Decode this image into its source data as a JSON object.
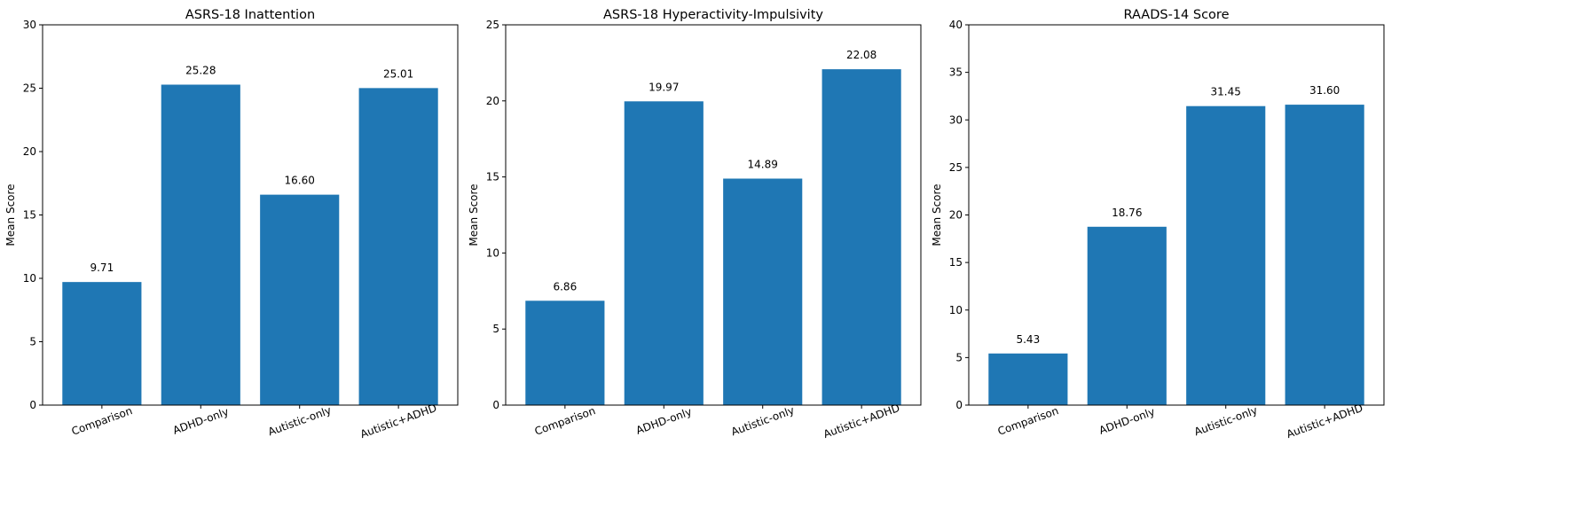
{
  "chart_data": [
    {
      "type": "bar",
      "title": "ASRS-18 Inattention",
      "xlabel": "",
      "ylabel": "Mean Score",
      "categories": [
        "Comparison",
        "ADHD-only",
        "Autistic-only",
        "Autistic+ADHD"
      ],
      "values": [
        9.71,
        25.28,
        16.6,
        25.01
      ],
      "value_labels": [
        "9.71",
        "25.28",
        "16.60",
        "25.01"
      ],
      "ylim": [
        0,
        30
      ],
      "yticks": [
        0,
        5,
        10,
        15,
        20,
        25,
        30
      ],
      "color": "#1f77b4",
      "grid": false
    },
    {
      "type": "bar",
      "title": "ASRS-18 Hyperactivity-Impulsivity",
      "xlabel": "",
      "ylabel": "Mean Score",
      "categories": [
        "Comparison",
        "ADHD-only",
        "Autistic-only",
        "Autistic+ADHD"
      ],
      "values": [
        6.86,
        19.97,
        14.89,
        22.08
      ],
      "value_labels": [
        "6.86",
        "19.97",
        "14.89",
        "22.08"
      ],
      "ylim": [
        0,
        25
      ],
      "yticks": [
        0,
        5,
        10,
        15,
        20,
        25
      ],
      "color": "#1f77b4",
      "grid": false
    },
    {
      "type": "bar",
      "title": "RAADS-14 Score",
      "xlabel": "",
      "ylabel": "Mean Score",
      "categories": [
        "Comparison",
        "ADHD-only",
        "Autistic-only",
        "Autistic+ADHD"
      ],
      "values": [
        5.43,
        18.76,
        31.45,
        31.6
      ],
      "value_labels": [
        "5.43",
        "18.76",
        "31.45",
        "31.60"
      ],
      "ylim": [
        0,
        40
      ],
      "yticks": [
        0,
        5,
        10,
        15,
        20,
        25,
        30,
        35,
        40
      ],
      "color": "#1f77b4",
      "grid": false
    }
  ]
}
